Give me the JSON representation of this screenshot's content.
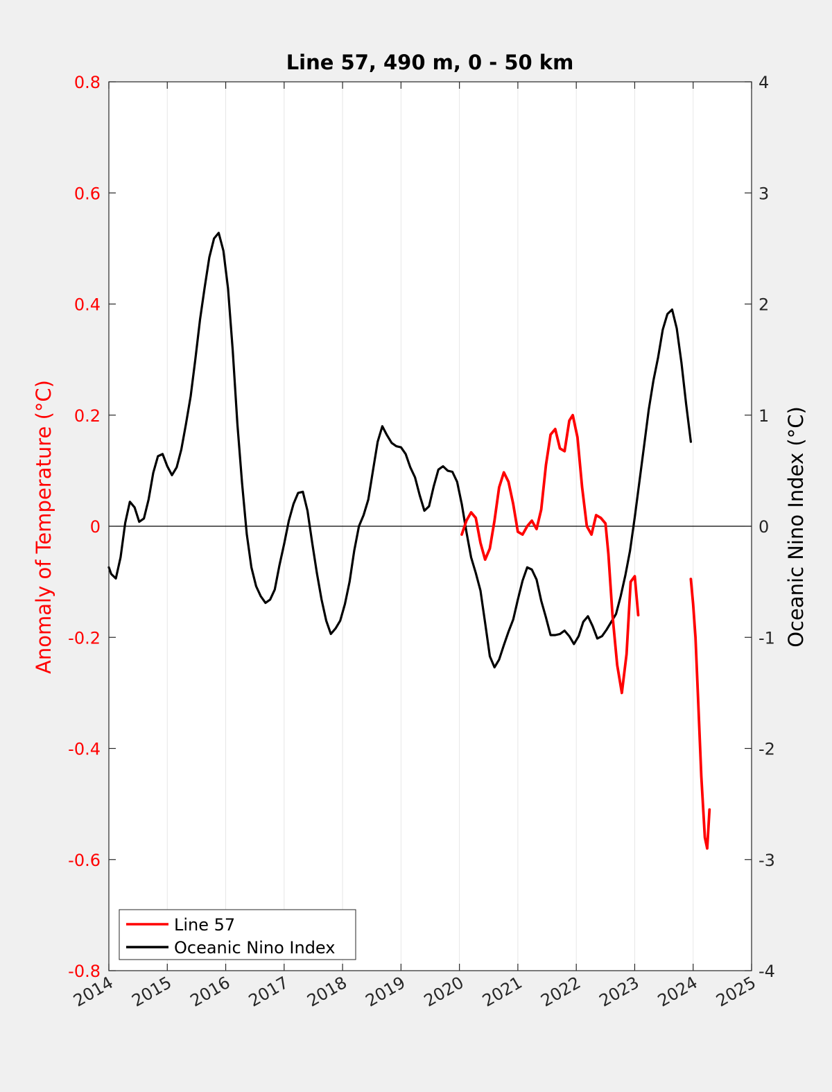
{
  "chart_data": {
    "type": "line",
    "title": "Line 57, 490 m, 0 - 50 km",
    "xlabel": "",
    "ylabel_left": "Anomaly of Temperature (°C)",
    "ylabel_right": "Oceanic Nino Index (°C)",
    "xlim": [
      2014,
      2025
    ],
    "ylim_left": [
      -0.8,
      0.8
    ],
    "ylim_right": [
      -4,
      4
    ],
    "x_ticks": [
      "2014",
      "2015",
      "2016",
      "2017",
      "2018",
      "2019",
      "2020",
      "2021",
      "2022",
      "2023",
      "2024",
      "2025"
    ],
    "y_ticks_left": [
      "0.8",
      "0.6",
      "0.4",
      "0.2",
      "0",
      "-0.2",
      "-0.4",
      "-0.6",
      "-0.8"
    ],
    "y_ticks_right": [
      "4",
      "3",
      "2",
      "1",
      "0",
      "-1",
      "-2",
      "-3",
      "-4"
    ],
    "vertical_grid": true,
    "zero_line": true,
    "legend_position": "bottom-left",
    "colors": {
      "line57": "#ff0000",
      "oni": "#000000",
      "left_axis": "#ff0000",
      "right_axis": "#262626"
    },
    "series": [
      {
        "name": "Line 57",
        "axis": "left",
        "color": "#ff0000",
        "segments": [
          [
            [
              2020.04,
              -0.015
            ],
            [
              2020.12,
              0.01
            ],
            [
              2020.2,
              0.025
            ],
            [
              2020.28,
              0.015
            ],
            [
              2020.36,
              -0.03
            ],
            [
              2020.44,
              -0.06
            ],
            [
              2020.52,
              -0.04
            ],
            [
              2020.6,
              0.01
            ],
            [
              2020.68,
              0.07
            ],
            [
              2020.76,
              0.097
            ],
            [
              2020.84,
              0.08
            ],
            [
              2020.92,
              0.04
            ],
            [
              2021.0,
              -0.01
            ],
            [
              2021.08,
              -0.015
            ],
            [
              2021.16,
              0.0
            ],
            [
              2021.24,
              0.01
            ],
            [
              2021.32,
              -0.005
            ],
            [
              2021.4,
              0.03
            ],
            [
              2021.48,
              0.11
            ],
            [
              2021.56,
              0.165
            ],
            [
              2021.64,
              0.175
            ],
            [
              2021.72,
              0.14
            ],
            [
              2021.8,
              0.135
            ],
            [
              2021.88,
              0.19
            ],
            [
              2021.94,
              0.2
            ],
            [
              2022.02,
              0.16
            ],
            [
              2022.1,
              0.07
            ],
            [
              2022.18,
              0.0
            ],
            [
              2022.26,
              -0.015
            ],
            [
              2022.34,
              0.02
            ],
            [
              2022.42,
              0.015
            ],
            [
              2022.5,
              0.005
            ],
            [
              2022.55,
              -0.05
            ],
            [
              2022.62,
              -0.16
            ],
            [
              2022.7,
              -0.25
            ],
            [
              2022.78,
              -0.3
            ],
            [
              2022.86,
              -0.23
            ],
            [
              2022.93,
              -0.1
            ],
            [
              2023.0,
              -0.09
            ],
            [
              2023.06,
              -0.16
            ]
          ],
          [
            [
              2023.96,
              -0.095
            ],
            [
              2024.0,
              -0.14
            ],
            [
              2024.04,
              -0.2
            ],
            [
              2024.08,
              -0.3
            ],
            [
              2024.14,
              -0.45
            ],
            [
              2024.2,
              -0.56
            ],
            [
              2024.24,
              -0.58
            ],
            [
              2024.28,
              -0.51
            ]
          ]
        ]
      },
      {
        "name": "Oceanic Nino Index",
        "axis": "right",
        "color": "#000000",
        "points": [
          [
            2014.0,
            -0.37
          ],
          [
            2014.04,
            -0.43
          ],
          [
            2014.12,
            -0.47
          ],
          [
            2014.2,
            -0.28
          ],
          [
            2014.28,
            0.03
          ],
          [
            2014.36,
            0.22
          ],
          [
            2014.44,
            0.17
          ],
          [
            2014.52,
            0.04
          ],
          [
            2014.6,
            0.07
          ],
          [
            2014.68,
            0.24
          ],
          [
            2014.76,
            0.48
          ],
          [
            2014.84,
            0.63
          ],
          [
            2014.92,
            0.65
          ],
          [
            2015.0,
            0.54
          ],
          [
            2015.08,
            0.46
          ],
          [
            2015.16,
            0.53
          ],
          [
            2015.24,
            0.69
          ],
          [
            2015.32,
            0.92
          ],
          [
            2015.4,
            1.17
          ],
          [
            2015.48,
            1.5
          ],
          [
            2015.56,
            1.86
          ],
          [
            2015.64,
            2.15
          ],
          [
            2015.72,
            2.42
          ],
          [
            2015.8,
            2.59
          ],
          [
            2015.88,
            2.64
          ],
          [
            2015.96,
            2.48
          ],
          [
            2016.04,
            2.14
          ],
          [
            2016.12,
            1.58
          ],
          [
            2016.2,
            0.92
          ],
          [
            2016.28,
            0.39
          ],
          [
            2016.36,
            -0.07
          ],
          [
            2016.44,
            -0.37
          ],
          [
            2016.52,
            -0.54
          ],
          [
            2016.6,
            -0.63
          ],
          [
            2016.68,
            -0.69
          ],
          [
            2016.76,
            -0.66
          ],
          [
            2016.84,
            -0.57
          ],
          [
            2016.92,
            -0.35
          ],
          [
            2017.0,
            -0.16
          ],
          [
            2017.08,
            0.05
          ],
          [
            2017.16,
            0.2
          ],
          [
            2017.24,
            0.3
          ],
          [
            2017.32,
            0.31
          ],
          [
            2017.4,
            0.14
          ],
          [
            2017.48,
            -0.15
          ],
          [
            2017.56,
            -0.42
          ],
          [
            2017.64,
            -0.66
          ],
          [
            2017.72,
            -0.85
          ],
          [
            2017.8,
            -0.97
          ],
          [
            2017.88,
            -0.92
          ],
          [
            2017.96,
            -0.85
          ],
          [
            2018.04,
            -0.7
          ],
          [
            2018.12,
            -0.5
          ],
          [
            2018.2,
            -0.22
          ],
          [
            2018.28,
            0.0
          ],
          [
            2018.36,
            0.1
          ],
          [
            2018.44,
            0.24
          ],
          [
            2018.52,
            0.5
          ],
          [
            2018.6,
            0.76
          ],
          [
            2018.68,
            0.9
          ],
          [
            2018.76,
            0.82
          ],
          [
            2018.84,
            0.75
          ],
          [
            2018.92,
            0.72
          ],
          [
            2019.0,
            0.71
          ],
          [
            2019.08,
            0.65
          ],
          [
            2019.16,
            0.53
          ],
          [
            2019.24,
            0.44
          ],
          [
            2019.32,
            0.28
          ],
          [
            2019.4,
            0.14
          ],
          [
            2019.48,
            0.18
          ],
          [
            2019.56,
            0.36
          ],
          [
            2019.64,
            0.51
          ],
          [
            2019.72,
            0.54
          ],
          [
            2019.8,
            0.5
          ],
          [
            2019.88,
            0.49
          ],
          [
            2019.96,
            0.4
          ],
          [
            2020.04,
            0.2
          ],
          [
            2020.12,
            -0.05
          ],
          [
            2020.2,
            -0.28
          ],
          [
            2020.28,
            -0.42
          ],
          [
            2020.36,
            -0.58
          ],
          [
            2020.44,
            -0.87
          ],
          [
            2020.52,
            -1.17
          ],
          [
            2020.6,
            -1.27
          ],
          [
            2020.68,
            -1.2
          ],
          [
            2020.76,
            -1.07
          ],
          [
            2020.84,
            -0.95
          ],
          [
            2020.92,
            -0.84
          ],
          [
            2021.0,
            -0.66
          ],
          [
            2021.08,
            -0.49
          ],
          [
            2021.16,
            -0.37
          ],
          [
            2021.24,
            -0.39
          ],
          [
            2021.32,
            -0.48
          ],
          [
            2021.4,
            -0.67
          ],
          [
            2021.48,
            -0.82
          ],
          [
            2021.56,
            -0.98
          ],
          [
            2021.64,
            -0.98
          ],
          [
            2021.72,
            -0.97
          ],
          [
            2021.8,
            -0.94
          ],
          [
            2021.88,
            -0.99
          ],
          [
            2021.96,
            -1.06
          ],
          [
            2022.04,
            -0.99
          ],
          [
            2022.12,
            -0.86
          ],
          [
            2022.2,
            -0.81
          ],
          [
            2022.28,
            -0.9
          ],
          [
            2022.36,
            -1.01
          ],
          [
            2022.44,
            -0.99
          ],
          [
            2022.52,
            -0.93
          ],
          [
            2022.6,
            -0.86
          ],
          [
            2022.68,
            -0.79
          ],
          [
            2022.76,
            -0.63
          ],
          [
            2022.84,
            -0.44
          ],
          [
            2022.92,
            -0.22
          ],
          [
            2023.0,
            0.08
          ],
          [
            2023.08,
            0.4
          ],
          [
            2023.16,
            0.72
          ],
          [
            2023.24,
            1.05
          ],
          [
            2023.32,
            1.31
          ],
          [
            2023.4,
            1.52
          ],
          [
            2023.48,
            1.77
          ],
          [
            2023.56,
            1.91
          ],
          [
            2023.64,
            1.95
          ],
          [
            2023.72,
            1.78
          ],
          [
            2023.8,
            1.47
          ],
          [
            2023.88,
            1.1
          ],
          [
            2023.96,
            0.76
          ]
        ]
      }
    ]
  }
}
